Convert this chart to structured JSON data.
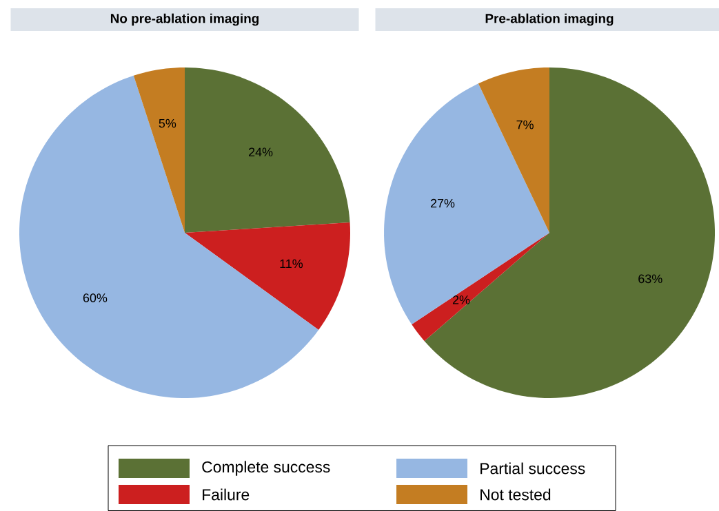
{
  "chart_data": [
    {
      "type": "pie",
      "title": "No pre-ablation imaging",
      "categories": [
        "Complete success",
        "Failure",
        "Partial success",
        "Not tested"
      ],
      "values": [
        24,
        11,
        60,
        5
      ],
      "value_labels": [
        "24%",
        "11%",
        "60%",
        "5%"
      ],
      "colors": [
        "#5b7135",
        "#cc1f1f",
        "#96b7e2",
        "#c47d22"
      ],
      "legend": "bottom"
    },
    {
      "type": "pie",
      "title": "Pre-ablation imaging",
      "categories": [
        null,
        null,
        null,
        null
      ],
      "values": [
        63,
        2,
        27,
        7
      ],
      "value_labels": [
        "63%",
        "2%",
        "27%",
        "7%"
      ],
      "colors": [
        "#5b7135",
        "#cc1f1f",
        "#96b7e2",
        "#c47d22"
      ]
    }
  ]
}
